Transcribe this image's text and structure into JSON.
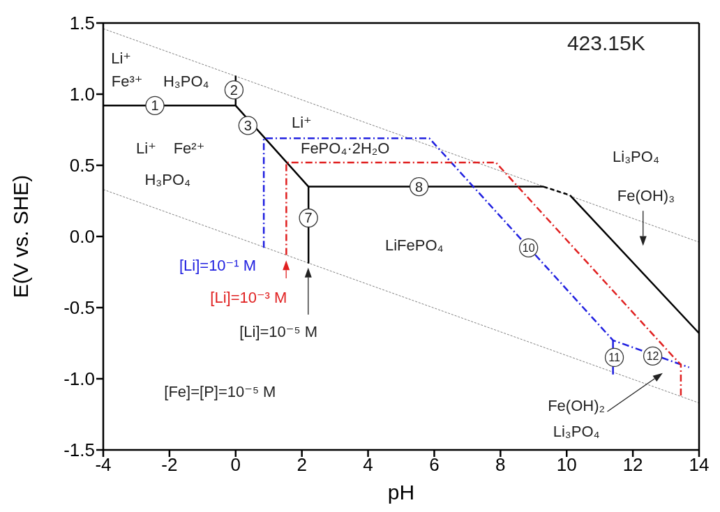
{
  "chart_data": {
    "type": "line",
    "xlabel": "pH",
    "ylabel": "E(V vs. SHE)",
    "xlim": [
      -4,
      14
    ],
    "xticks": [
      -4,
      -2,
      0,
      2,
      4,
      6,
      8,
      10,
      12,
      14
    ],
    "ylim": [
      -1.5,
      1.5
    ],
    "yticks": [
      {
        "value": -1.5,
        "label": "-1.5"
      },
      {
        "value": -1,
        "label": "-1.0"
      },
      {
        "value": -0.5,
        "label": "-0.5"
      },
      {
        "value": 0,
        "label": "0.0"
      },
      {
        "value": 0.5,
        "label": "0.5"
      },
      {
        "value": 1,
        "label": "1.0"
      },
      {
        "value": 1.5,
        "label": "1.5"
      }
    ],
    "grid": false,
    "marker": "none",
    "series": [
      {
        "color": "#808080",
        "line_style": "dotted",
        "x": [
          -4,
          14
        ],
        "values": [
          1.46,
          -0.04
        ]
      },
      {
        "color": "#808080",
        "line_style": "dotted",
        "x": [
          -4,
          14
        ],
        "values": [
          0.33,
          -1.17
        ]
      },
      {
        "color": "#000000",
        "line_style": "solid",
        "x": [
          -4,
          0,
          2.2,
          9.3
        ],
        "values": [
          0.92,
          0.92,
          0.35,
          0.35
        ]
      },
      {
        "color": "#000000",
        "line_style": "solid",
        "x": [
          0,
          0
        ],
        "values": [
          0.92,
          1.13
        ]
      },
      {
        "color": "#000000",
        "line_style": "solid",
        "x": [
          2.2,
          2.2
        ],
        "values": [
          0.35,
          -0.19
        ]
      },
      {
        "color": "#000000",
        "line_style": "dashed",
        "x": [
          9.3,
          10.1
        ],
        "values": [
          0.35,
          0.29
        ]
      },
      {
        "color": "#000000",
        "line_style": "solid",
        "x": [
          10.1,
          14
        ],
        "values": [
          0.29,
          -0.68
        ]
      },
      {
        "color": "#2020e0",
        "line_style": "dashdot",
        "x": [
          0.85,
          0.85,
          5.85,
          11.4,
          13.7
        ],
        "values": [
          -0.08,
          0.69,
          0.69,
          -0.73,
          -0.92
        ]
      },
      {
        "color": "#2020e0",
        "line_style": "solid",
        "x": [
          11.4,
          11.4
        ],
        "values": [
          -0.73,
          -0.97
        ]
      },
      {
        "color": "#e02020",
        "line_style": "dashdot",
        "x": [
          1.53,
          1.53,
          7.86,
          13.2,
          13.45,
          13.45
        ],
        "values": [
          -0.13,
          0.52,
          0.52,
          -0.84,
          -0.9,
          -1.13
        ]
      }
    ],
    "annotations": [
      "423.15K",
      "Li⁺",
      "Fe³⁺",
      "H₃PO₄",
      "Li⁺",
      "Fe²⁺",
      "H₃PO₄",
      "Li⁺",
      "FePO₄·2H₂O",
      "Li₃PO₄",
      "Fe(OH)₃",
      "LiFePO₄",
      "[Li]=10⁻¹ M",
      "[Li]=10⁻³ M",
      "[Li]=10⁻⁵ M",
      "[Fe]=[P]=10⁻⁵ M",
      "Fe(OH)₂",
      "Li₃PO₄",
      {
        "text": "1",
        "x": -2.44,
        "y": 0.92
      },
      {
        "text": "2",
        "x": -0.05,
        "y": 1.03
      },
      {
        "text": "3",
        "x": 0.37,
        "y": 0.78
      },
      {
        "text": "7",
        "x": 2.2,
        "y": 0.13
      },
      {
        "text": "8",
        "x": 5.54,
        "y": 0.35
      },
      {
        "text": "10",
        "x": 8.85,
        "y": -0.08
      },
      {
        "text": "11",
        "x": 11.44,
        "y": -0.85
      },
      {
        "text": "12",
        "x": 12.6,
        "y": -0.84
      }
    ]
  }
}
